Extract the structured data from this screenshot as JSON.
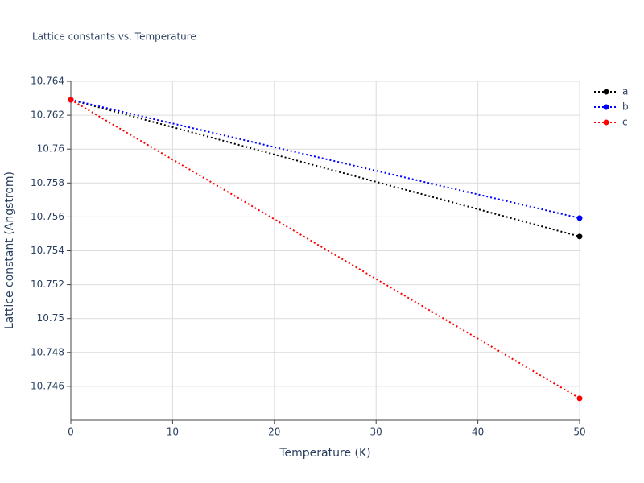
{
  "chart_data": {
    "type": "line",
    "title": "Lattice constants vs. Temperature",
    "x_label": "Temperature (K)",
    "y_label": "Lattice constant (Angstrom)",
    "x": [
      0,
      50
    ],
    "series": [
      {
        "name": "a",
        "color": "#000000",
        "values": [
          10.76291,
          10.75484
        ]
      },
      {
        "name": "b",
        "color": "#0000ff",
        "values": [
          10.76291,
          10.75593
        ]
      },
      {
        "name": "c",
        "color": "#ff0000",
        "values": [
          10.76291,
          10.74529
        ]
      }
    ],
    "xlim": [
      0,
      50
    ],
    "xticks": [
      0,
      10,
      20,
      30,
      40,
      50
    ],
    "ylim": [
      10.744,
      10.764
    ],
    "yticks": [
      10.746,
      10.748,
      10.75,
      10.752,
      10.754,
      10.756,
      10.758,
      10.76,
      10.762,
      10.764
    ],
    "grid": true,
    "legend": "top-right"
  }
}
